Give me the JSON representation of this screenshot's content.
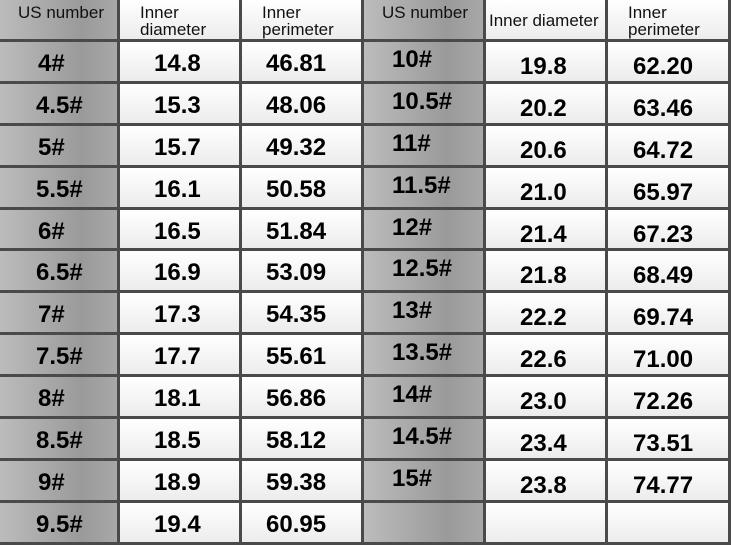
{
  "headers": [
    "US number",
    "Inner diameter",
    "Inner perimeter",
    "US number",
    "Inner diameter",
    "Inner perimeter"
  ],
  "rows": [
    [
      "4#",
      "14.8",
      "46.81",
      "10#",
      "19.8",
      "62.20"
    ],
    [
      "4.5#",
      "15.3",
      "48.06",
      "10.5#",
      "20.2",
      "63.46"
    ],
    [
      "5#",
      "15.7",
      "49.32",
      "11#",
      "20.6",
      "64.72"
    ],
    [
      "5.5#",
      "16.1",
      "50.58",
      "11.5#",
      "21.0",
      "65.97"
    ],
    [
      "6#",
      "16.5",
      "51.84",
      "12#",
      "21.4",
      "67.23"
    ],
    [
      "6.5#",
      "16.9",
      "53.09",
      "12.5#",
      "21.8",
      "68.49"
    ],
    [
      "7#",
      "17.3",
      "54.35",
      "13#",
      "22.2",
      "69.74"
    ],
    [
      "7.5#",
      "17.7",
      "55.61",
      "13.5#",
      "22.6",
      "71.00"
    ],
    [
      "8#",
      "18.1",
      "56.86",
      "14#",
      "23.0",
      "72.26"
    ],
    [
      "8.5#",
      "18.5",
      "58.12",
      "14.5#",
      "23.4",
      "73.51"
    ],
    [
      "9#",
      "18.9",
      "59.38",
      "15#",
      "23.8",
      "74.77"
    ],
    [
      "9.5#",
      "19.4",
      "60.95",
      "",
      "",
      ""
    ]
  ],
  "colors": {
    "size_column": "#a8a8a8",
    "value_column": "#f4f4f4",
    "grid": "#4a4a4a"
  }
}
